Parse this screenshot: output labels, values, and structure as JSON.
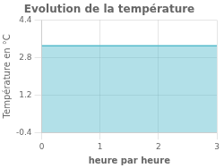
{
  "chart_data": {
    "type": "area",
    "title": "Evolution de la température",
    "x_label": "heure par heure",
    "y_label": "Température en °C",
    "x": [
      0,
      3
    ],
    "values": [
      3.3,
      3.3
    ],
    "color": "#55bbcc",
    "xlim": [
      0,
      3
    ],
    "ylim": [
      -0.4,
      4.4
    ],
    "xticks": [
      0,
      1,
      2,
      3
    ],
    "yticks": [
      -0.4,
      1.2,
      2.8,
      4.4
    ],
    "grid": true
  }
}
